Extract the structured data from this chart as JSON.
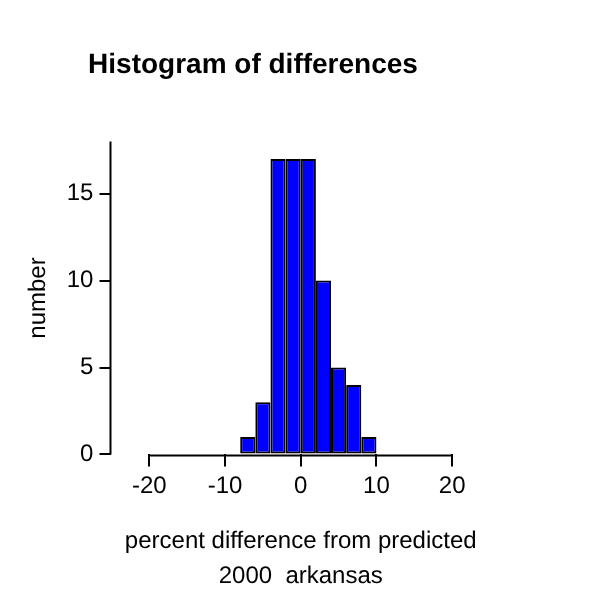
{
  "chart_data": {
    "type": "histogram",
    "title": "Histogram of differences",
    "xlabel": "percent difference from predicted",
    "ylabel": "number",
    "annotations": [
      "2000  arkansas"
    ],
    "bins": [
      -8,
      -6,
      -4,
      -2,
      0,
      2,
      4,
      6,
      8,
      10
    ],
    "values": [
      1,
      3,
      17,
      17,
      17,
      10,
      5,
      4,
      1
    ],
    "color": "#0000ff",
    "xlim": [
      -20,
      20
    ],
    "xticks": [
      -20,
      -10,
      0,
      10,
      20
    ],
    "ylim": [
      0,
      18
    ],
    "yticks": [
      0,
      5,
      10,
      15
    ],
    "grid": false,
    "legend": false
  }
}
